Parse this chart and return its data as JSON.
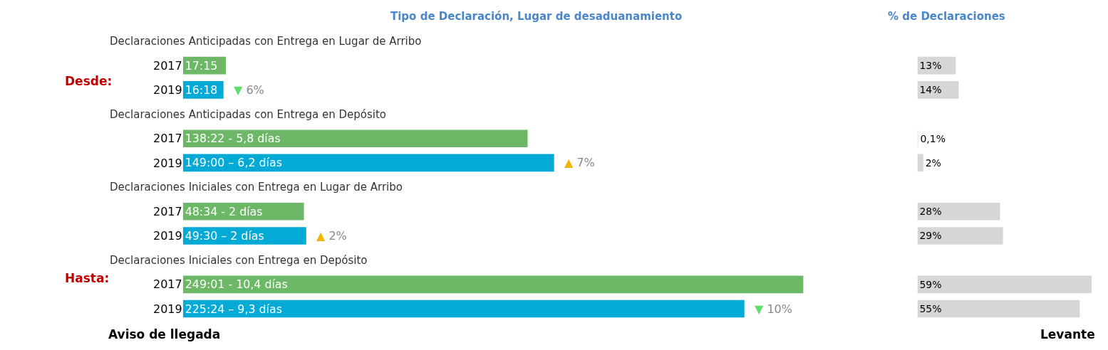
{
  "chart_data": [
    {
      "type": "bar",
      "orientation": "horizontal",
      "title": "Tipo de Declaración, Lugar de desaduanamiento",
      "categories": [
        "2017",
        "2019",
        "2017",
        "2019",
        "2017",
        "2019",
        "2017",
        "2019"
      ],
      "values": [
        17.25,
        16.3,
        138.37,
        149.0,
        48.57,
        49.5,
        249.02,
        225.4
      ],
      "colors": [
        "#6cb866",
        "#03aad6",
        "#6cb866",
        "#03aad6",
        "#6cb866",
        "#03aad6",
        "#6cb866",
        "#03aad6"
      ],
      "value_labels": [
        "17:15",
        "16:18",
        "138:22 - 5,8 días",
        "149:00 – 6,2 días",
        "48:34 - 2 días",
        "49:30 – 2 días",
        "249:01 - 10,4 días",
        "225:24 – 9,3 días"
      ],
      "annotations": [
        "Declaraciones Anticipadas con Entrega en Lugar de Arribo",
        "Declaraciones Anticipadas con Entrega en Depósito",
        "Declaraciones Iniciales con Entrega en Lugar de Arribo",
        "Declaraciones Iniciales con Entrega en Depósito",
        "▼ 6%",
        "▲ 7%",
        "▲ 2%",
        "▼ 10%",
        "Desde:",
        "Hasta:",
        "Aviso de llegada",
        "Levante"
      ]
    },
    {
      "type": "bar",
      "orientation": "horizontal",
      "title": "% de Declaraciones",
      "categories": [
        null,
        null,
        null,
        null,
        null,
        null,
        null,
        null
      ],
      "values": [
        13,
        14,
        0.1,
        2,
        28,
        29,
        59,
        55
      ],
      "color": "#d6d6d6",
      "value_labels": [
        "13%",
        "14%",
        "0,1%",
        "2%",
        "28%",
        "29%",
        "59%",
        "55%"
      ]
    }
  ]
}
